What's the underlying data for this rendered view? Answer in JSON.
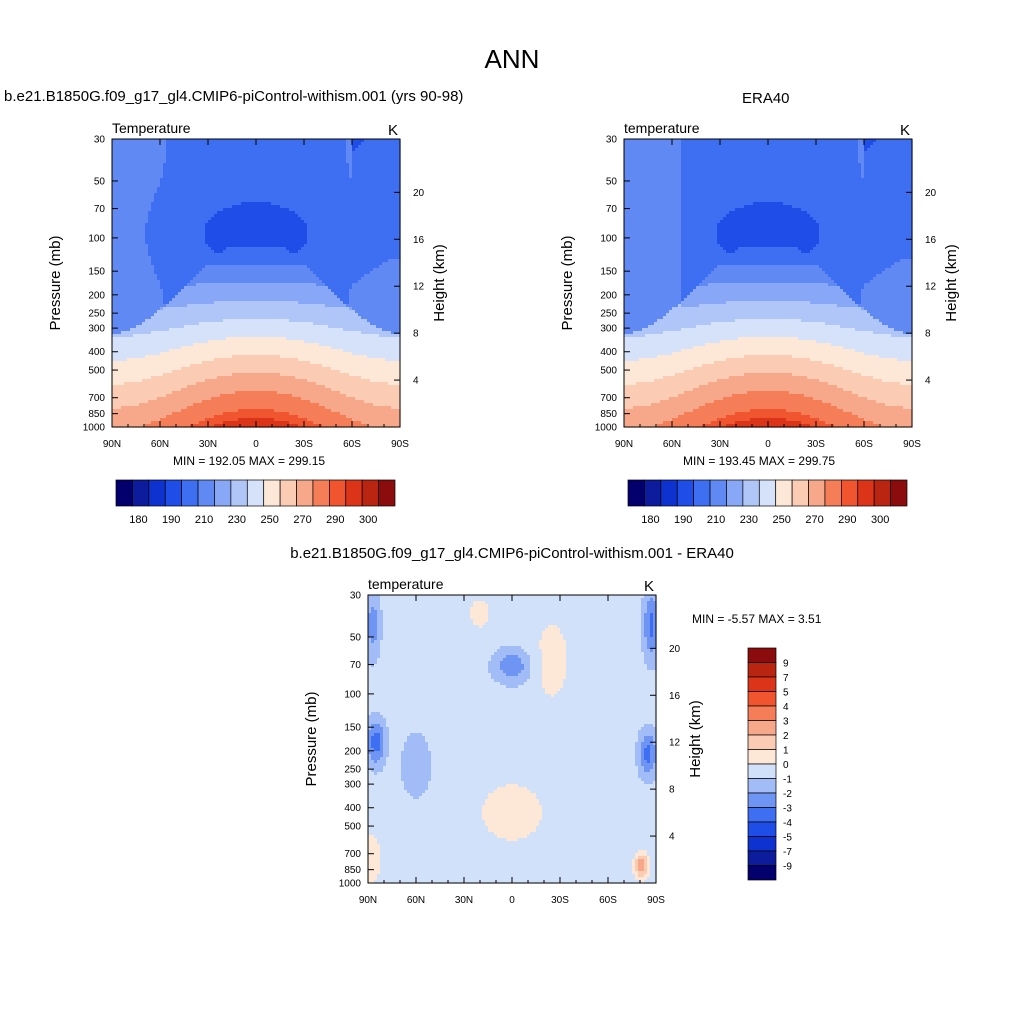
{
  "page_title": "ANN",
  "palettes": {
    "temperature": [
      "#03006d",
      "#0c1c9d",
      "#0d32d0",
      "#1f4de8",
      "#3e6ff2",
      "#6189f4",
      "#88a7f6",
      "#b0c6f8",
      "#d5e2fa",
      "#fde8d8",
      "#fbcbb3",
      "#f8a88a",
      "#f57e59",
      "#f0552f",
      "#dc3418",
      "#b92511",
      "#8c0c0d"
    ],
    "difference": [
      "#03006d",
      "#0c1c9d",
      "#0d32d0",
      "#1f4de8",
      "#3e6ff2",
      "#6f95f4",
      "#a2bcf7",
      "#d2e1fa",
      "#fde8d8",
      "#fbcbb3",
      "#f8a88a",
      "#f57e59",
      "#f0552f",
      "#dc3418",
      "#b92511",
      "#8c0c0d"
    ]
  },
  "chart_data": [
    {
      "type": "contour",
      "title": "b.e21.B1850G.f09_g17_gl4.CMIP6-piControl-withism.001 (yrs 90-98)",
      "variable_label": "Temperature",
      "units": "K",
      "ylabel": "Pressure (mb)",
      "y2label": "Height (km)",
      "x_ticks": [
        "90N",
        "60N",
        "30N",
        "0",
        "30S",
        "60S",
        "90S"
      ],
      "y_ticks": [
        30,
        50,
        70,
        100,
        150,
        200,
        250,
        300,
        400,
        500,
        700,
        850,
        1000
      ],
      "y2_ticks": [
        20,
        16,
        12,
        8,
        4
      ],
      "min": 192.05,
      "max": 299.15,
      "minmax_text": "MIN = 192.05  MAX = 299.15",
      "colorbar_labels": [
        "180",
        "190",
        "210",
        "230",
        "250",
        "270",
        "290",
        "300"
      ]
    },
    {
      "type": "contour",
      "title": "ERA40",
      "variable_label": "temperature",
      "units": "K",
      "ylabel": "Pressure (mb)",
      "y2label": "Height (km)",
      "x_ticks": [
        "90N",
        "60N",
        "30N",
        "0",
        "30S",
        "60S",
        "90S"
      ],
      "y_ticks": [
        30,
        50,
        70,
        100,
        150,
        200,
        250,
        300,
        400,
        500,
        700,
        850,
        1000
      ],
      "y2_ticks": [
        20,
        16,
        12,
        8,
        4
      ],
      "min": 193.45,
      "max": 299.75,
      "minmax_text": "MIN = 193.45  MAX = 299.75",
      "colorbar_labels": [
        "180",
        "190",
        "210",
        "230",
        "250",
        "270",
        "290",
        "300"
      ]
    },
    {
      "type": "contour",
      "title": "b.e21.B1850G.f09_g17_gl4.CMIP6-piControl-withism.001 - ERA40",
      "variable_label": "temperature",
      "units": "K",
      "ylabel": "Pressure (mb)",
      "y2label": "Height (km)",
      "x_ticks": [
        "90N",
        "60N",
        "30N",
        "0",
        "30S",
        "60S",
        "90S"
      ],
      "y_ticks": [
        30,
        50,
        70,
        100,
        150,
        200,
        250,
        300,
        400,
        500,
        700,
        850,
        1000
      ],
      "y2_ticks": [
        20,
        16,
        12,
        8,
        4
      ],
      "min": -5.57,
      "max": 3.51,
      "minmax_text": "MIN =  -5.57  MAX =    3.51",
      "colorbar_labels": [
        "9",
        "7",
        "5",
        "4",
        "3",
        "2",
        "1",
        "0",
        "-1",
        "-2",
        "-3",
        "-4",
        "-5",
        "-7",
        "-9"
      ]
    }
  ]
}
